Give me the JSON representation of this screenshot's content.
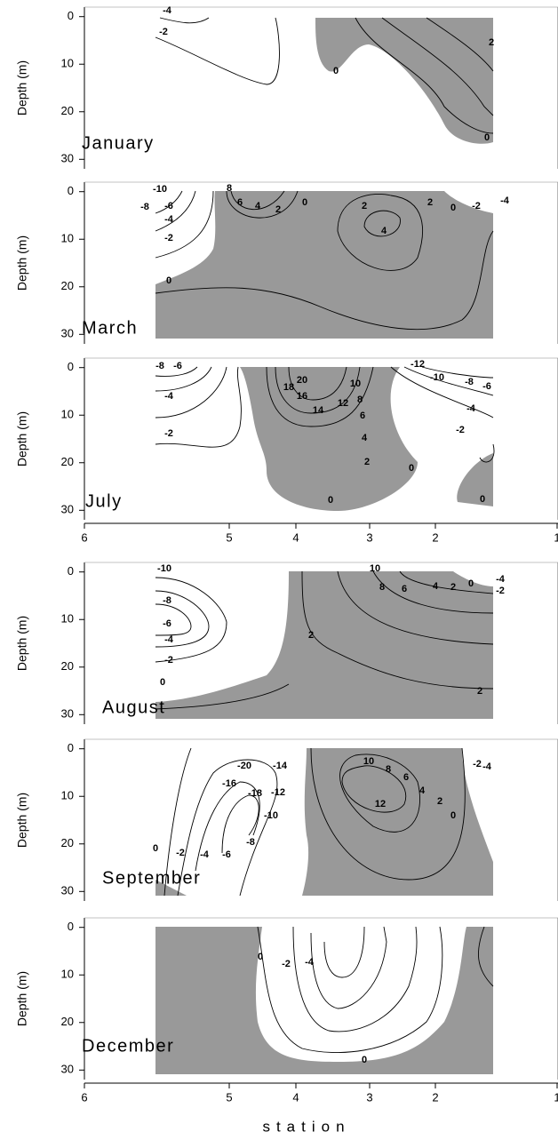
{
  "chart_data": [
    {
      "type": "contour",
      "title": "January",
      "ylabel": "Depth (m)",
      "ylim": [
        -2,
        32
      ],
      "yticks": [
        0,
        10,
        20,
        30
      ],
      "color": "#999999",
      "contour_labels": [
        -4,
        -2,
        0,
        2,
        0
      ]
    },
    {
      "type": "contour",
      "title": "March",
      "ylabel": "Depth (m)",
      "ylim": [
        -2,
        32
      ],
      "yticks": [
        0,
        10,
        20,
        30
      ],
      "color": "#999999",
      "contour_labels": [
        -10,
        -8,
        -6,
        -4,
        -2,
        0,
        8,
        6,
        4,
        2,
        0,
        2,
        4,
        2,
        0,
        -2,
        -4
      ]
    },
    {
      "type": "contour",
      "title": "July",
      "ylabel": "Depth (m)",
      "ylim": [
        -2,
        32
      ],
      "yticks": [
        0,
        10,
        20,
        30
      ],
      "color": "#999999",
      "xlim": [
        6,
        1
      ],
      "xticks": [
        6,
        5,
        4,
        3,
        2,
        1
      ],
      "contour_labels": [
        -8,
        -6,
        -4,
        -2,
        20,
        18,
        16,
        14,
        12,
        10,
        8,
        6,
        4,
        2,
        0,
        -12,
        -10,
        -8,
        -6,
        -4,
        -2,
        0,
        0
      ]
    },
    {
      "type": "contour",
      "title": "August",
      "ylabel": "Depth (m)",
      "ylim": [
        -2,
        32
      ],
      "yticks": [
        0,
        10,
        20,
        30
      ],
      "color": "#999999",
      "contour_labels": [
        -10,
        -8,
        -6,
        -4,
        -2,
        0,
        2,
        10,
        8,
        6,
        4,
        2,
        0,
        -2,
        -4,
        2
      ]
    },
    {
      "type": "contour",
      "title": "September",
      "ylabel": "Depth (m)",
      "ylim": [
        -2,
        32
      ],
      "yticks": [
        0,
        10,
        20,
        30
      ],
      "color": "#999999",
      "contour_labels": [
        -20,
        -16,
        -18,
        -14,
        -12,
        -10,
        -8,
        -6,
        -4,
        -2,
        0,
        10,
        8,
        6,
        4,
        2,
        0,
        -2,
        -4,
        12
      ]
    },
    {
      "type": "contour",
      "title": "December",
      "ylabel": "Depth (m)",
      "ylim": [
        -2,
        32
      ],
      "yticks": [
        0,
        10,
        20,
        30
      ],
      "color": "#999999",
      "xlim": [
        6,
        1
      ],
      "xticks": [
        6,
        5,
        4,
        3,
        2,
        1
      ],
      "xlabel": "station",
      "contour_labels": [
        0,
        -2,
        -4,
        0
      ]
    }
  ]
}
